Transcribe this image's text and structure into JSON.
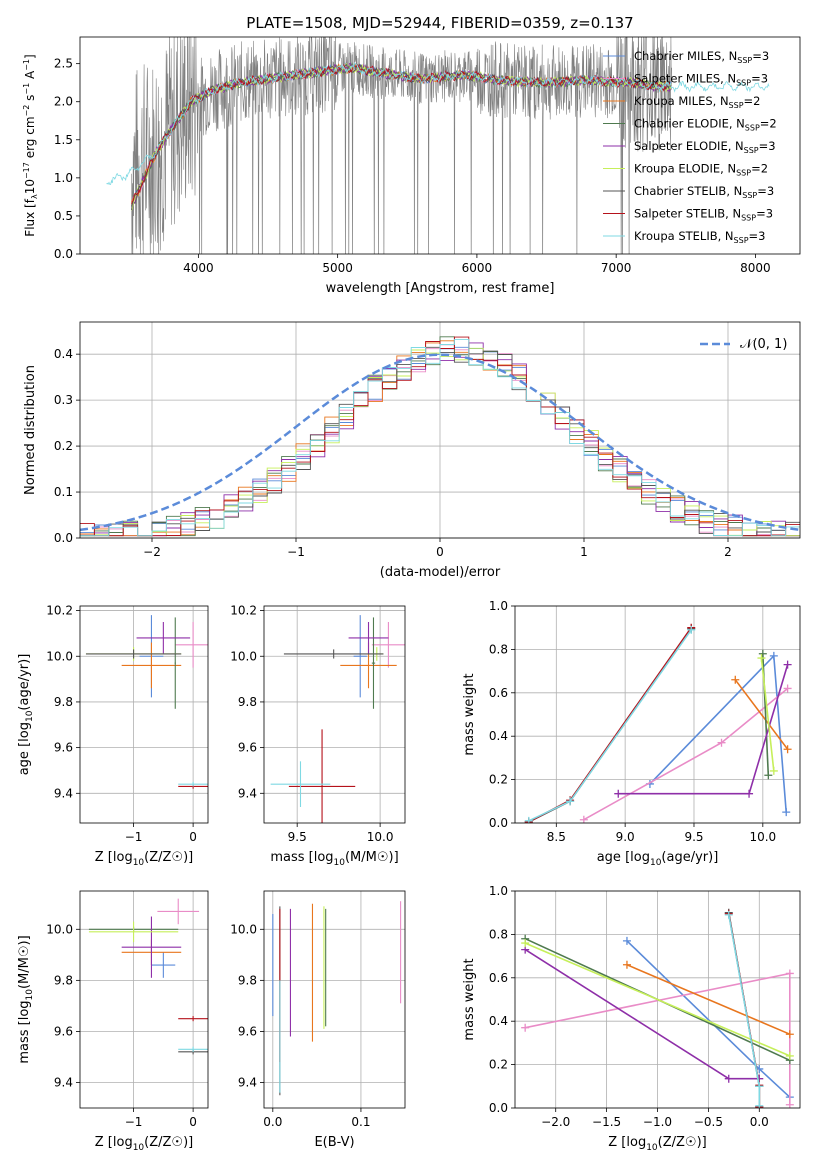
{
  "figure": {
    "title": "PLATE=1508, MJD=52944, FIBERID=0359, z=0.137"
  },
  "series": [
    {
      "name": "Chabrier MILES",
      "color": "#5b8bd9",
      "label": "Chabrier MILES, N",
      "nssp": "3"
    },
    {
      "name": "Salpeter MILES",
      "color": "#e98cc7",
      "label": "Salpeter MILES, N",
      "nssp": "3"
    },
    {
      "name": "Kroupa MILES",
      "color": "#e8761e",
      "label": "Kroupa MILES, N",
      "nssp": "2"
    },
    {
      "name": "Chabrier ELODIE",
      "color": "#4f7a4f",
      "label": "Chabrier ELODIE, N",
      "nssp": "2"
    },
    {
      "name": "Salpeter ELODIE",
      "color": "#8e2fa8",
      "label": "Salpeter ELODIE, N",
      "nssp": "3"
    },
    {
      "name": "Kroupa ELODIE",
      "color": "#c6ef5a",
      "label": "Kroupa ELODIE, N",
      "nssp": "2"
    },
    {
      "name": "Chabrier STELIB",
      "color": "#555555",
      "label": "Chabrier STELIB, N",
      "nssp": "3"
    },
    {
      "name": "Salpeter STELIB",
      "color": "#b5121b",
      "label": "Salpeter STELIB, N",
      "nssp": "3"
    },
    {
      "name": "Kroupa STELIB",
      "color": "#7fd9e3",
      "label": "Kroupa STELIB, N",
      "nssp": "3"
    }
  ],
  "chart_data": [
    {
      "id": "spectrum",
      "type": "line",
      "xlabel": "wavelength [Angstrom, rest frame]",
      "ylabel": "Flux [f",
      "xlim": [
        3150,
        8320
      ],
      "ylim": [
        0,
        2.85
      ],
      "xticks": [
        "4000",
        "5000",
        "6000",
        "7000",
        "8000"
      ],
      "xtick_values": [
        4000,
        5000,
        6000,
        7000,
        8000
      ],
      "yticks": [
        "0.0",
        "0.5",
        "1.0",
        "1.5",
        "2.0",
        "2.5"
      ],
      "ytick_values": [
        0,
        0.5,
        1.0,
        1.5,
        2.0,
        2.5
      ],
      "data_grey": {
        "name": "data",
        "color": "#808080"
      },
      "continuum": {
        "x": [
          3340,
          3500,
          3700,
          3850,
          3950,
          4100,
          4300,
          4500,
          4700,
          4900,
          5100,
          5300,
          5600,
          5900,
          6200,
          6500,
          6800,
          7100,
          7300
        ],
        "y": [
          0.95,
          1.05,
          1.35,
          1.75,
          2.0,
          2.15,
          2.25,
          2.3,
          2.35,
          2.4,
          2.45,
          2.38,
          2.3,
          2.35,
          2.28,
          2.25,
          2.28,
          2.25,
          2.2
        ]
      }
    },
    {
      "id": "residuals",
      "type": "histogram",
      "xlabel": "(data-model)/error",
      "ylabel": "Normed distribution",
      "xlim": [
        -2.5,
        2.5
      ],
      "ylim": [
        0,
        0.47
      ],
      "xticks": [
        "−2",
        "−1",
        "0",
        "1",
        "2"
      ],
      "xtick_values": [
        -2,
        -1,
        0,
        1,
        2
      ],
      "yticks": [
        "0.0",
        "0.1",
        "0.2",
        "0.3",
        "0.4"
      ],
      "ytick_values": [
        0,
        0.1,
        0.2,
        0.3,
        0.4
      ],
      "normal_label": "𝒩(0, 1)",
      "normal_color": "#5b8bd9",
      "bin_width": 0.1,
      "bin_start": -2.5
    },
    {
      "id": "age-vs-Z",
      "type": "scatter",
      "xlabel": "Z [log",
      "ylabel": "age  [log",
      "xlim": [
        -1.9,
        0.25
      ],
      "ylim": [
        9.27,
        10.22
      ],
      "xticks": [
        "−1",
        "0"
      ],
      "xtick_values": [
        -1,
        0
      ],
      "yticks": [
        "9.4",
        "9.6",
        "9.8",
        "10.0",
        "10.2"
      ],
      "ytick_values": [
        9.4,
        9.6,
        9.8,
        10.0,
        10.2
      ],
      "points": [
        {
          "series": 0,
          "x": -0.7,
          "y": 10.0,
          "xerr": 0.2,
          "yerr": 0.18
        },
        {
          "series": 1,
          "x": 0.0,
          "y": 10.05,
          "xerr": 0.3,
          "yerr": 0.1
        },
        {
          "series": 2,
          "x": -0.7,
          "y": 9.96,
          "xerr": 0.5,
          "yerr": 0.1
        },
        {
          "series": 3,
          "x": -0.3,
          "y": 9.97,
          "xerr": 0.01,
          "yerr": 0.2
        },
        {
          "series": 4,
          "x": -0.5,
          "y": 10.08,
          "xerr": 0.45,
          "yerr": 0.07
        },
        {
          "series": 5,
          "x": -1.0,
          "y": 10.01,
          "xerr": 0.8,
          "yerr": 0.03
        },
        {
          "series": 6,
          "x": -1.0,
          "y": 10.01,
          "xerr": 0.8,
          "yerr": 0.02
        },
        {
          "series": 7,
          "x": 0.0,
          "y": 9.43,
          "xerr": 0.25,
          "yerr": 0.01
        },
        {
          "series": 8,
          "x": 0.0,
          "y": 9.44,
          "xerr": 0.25,
          "yerr": 0.01
        }
      ]
    },
    {
      "id": "age-vs-mass",
      "type": "scatter",
      "xlabel": "mass [log",
      "ylabel": "",
      "xlim": [
        9.3,
        10.15
      ],
      "ylim": [
        9.27,
        10.22
      ],
      "xticks": [
        "9.5",
        "10.0"
      ],
      "xtick_values": [
        9.5,
        10.0
      ],
      "yticks": [
        "9.4",
        "9.6",
        "9.8",
        "10.0",
        "10.2"
      ],
      "ytick_values": [
        9.4,
        9.6,
        9.8,
        10.0,
        10.2
      ],
      "points": [
        {
          "series": 0,
          "x": 9.88,
          "y": 10.0,
          "xerr": 0.04,
          "yerr": 0.18
        },
        {
          "series": 1,
          "x": 10.05,
          "y": 10.05,
          "xerr": 0.1,
          "yerr": 0.1
        },
        {
          "series": 2,
          "x": 9.93,
          "y": 9.96,
          "xerr": 0.17,
          "yerr": 0.1
        },
        {
          "series": 3,
          "x": 9.96,
          "y": 9.97,
          "xerr": 0.01,
          "yerr": 0.2
        },
        {
          "series": 4,
          "x": 9.93,
          "y": 10.08,
          "xerr": 0.12,
          "yerr": 0.07
        },
        {
          "series": 5,
          "x": 9.98,
          "y": 10.01,
          "xerr": 0.04,
          "yerr": 0.03
        },
        {
          "series": 6,
          "x": 9.72,
          "y": 10.01,
          "xerr": 0.3,
          "yerr": 0.02
        },
        {
          "series": 7,
          "x": 9.65,
          "y": 9.43,
          "xerr": 0.2,
          "yerr": 0.25
        },
        {
          "series": 8,
          "x": 9.52,
          "y": 9.44,
          "xerr": 0.18,
          "yerr": 0.1
        }
      ]
    },
    {
      "id": "weight-vs-age",
      "type": "line",
      "xlabel": "age  [log",
      "ylabel": "mass weight",
      "xlim": [
        8.2,
        10.27
      ],
      "ylim": [
        0,
        1.0
      ],
      "xticks": [
        "8.5",
        "9.0",
        "9.5",
        "10.0"
      ],
      "xtick_values": [
        8.5,
        9.0,
        9.5,
        10.0
      ],
      "yticks": [
        "0.0",
        "0.2",
        "0.4",
        "0.6",
        "0.8",
        "1.0"
      ],
      "ytick_values": [
        0,
        0.2,
        0.4,
        0.6,
        0.8,
        1.0
      ],
      "lines": [
        {
          "series": 0,
          "x": [
            9.18,
            10.08,
            10.17
          ],
          "y": [
            0.18,
            0.77,
            0.05
          ]
        },
        {
          "series": 1,
          "x": [
            8.7,
            9.7,
            10.18
          ],
          "y": [
            0.015,
            0.37,
            0.62
          ]
        },
        {
          "series": 2,
          "x": [
            9.8,
            10.18
          ],
          "y": [
            0.66,
            0.34
          ]
        },
        {
          "series": 3,
          "x": [
            10.0,
            10.04
          ],
          "y": [
            0.78,
            0.22
          ]
        },
        {
          "series": 4,
          "x": [
            8.95,
            9.9,
            10.18
          ],
          "y": [
            0.135,
            0.135,
            0.73
          ]
        },
        {
          "series": 5,
          "x": [
            9.99,
            10.08
          ],
          "y": [
            0.76,
            0.24
          ]
        },
        {
          "series": 6,
          "x": [
            8.3,
            8.6,
            9.48
          ],
          "y": [
            0.005,
            0.1,
            0.895
          ]
        },
        {
          "series": 7,
          "x": [
            8.3,
            8.6,
            9.48
          ],
          "y": [
            0.005,
            0.105,
            0.9
          ]
        },
        {
          "series": 8,
          "x": [
            8.3,
            8.6,
            9.48
          ],
          "y": [
            0.01,
            0.1,
            0.89
          ]
        }
      ]
    },
    {
      "id": "mass-vs-Z",
      "type": "scatter",
      "xlabel": "Z [log",
      "ylabel": "mass [log",
      "xlim": [
        -1.9,
        0.25
      ],
      "ylim": [
        9.3,
        10.15
      ],
      "xticks": [
        "−1",
        "0"
      ],
      "xtick_values": [
        -1,
        0
      ],
      "yticks": [
        "9.4",
        "9.6",
        "9.8",
        "10.0"
      ],
      "ytick_values": [
        9.4,
        9.6,
        9.8,
        10.0
      ],
      "points": [
        {
          "series": 0,
          "x": -0.5,
          "y": 9.86,
          "xerr": 0.2,
          "yerr": 0.05
        },
        {
          "series": 1,
          "x": -0.25,
          "y": 10.07,
          "xerr": 0.35,
          "yerr": 0.05
        },
        {
          "series": 2,
          "x": -0.7,
          "y": 9.91,
          "xerr": 0.5,
          "yerr": 0.05
        },
        {
          "series": 3,
          "x": -1.0,
          "y": 10.0,
          "xerr": 0.75,
          "yerr": 0.01
        },
        {
          "series": 4,
          "x": -0.7,
          "y": 9.93,
          "xerr": 0.5,
          "yerr": 0.12
        },
        {
          "series": 5,
          "x": -1.0,
          "y": 9.99,
          "xerr": 0.75,
          "yerr": 0.04
        },
        {
          "series": 6,
          "x": 0.0,
          "y": 9.52,
          "xerr": 0.25,
          "yerr": 0.01
        },
        {
          "series": 7,
          "x": 0.0,
          "y": 9.65,
          "xerr": 0.25,
          "yerr": 0.01
        },
        {
          "series": 8,
          "x": 0.0,
          "y": 9.53,
          "xerr": 0.25,
          "yerr": 0.01
        }
      ]
    },
    {
      "id": "mass-vs-EBV",
      "type": "scatter",
      "xlabel": "E(B-V)",
      "ylabel": "",
      "xlim": [
        -0.01,
        0.15
      ],
      "ylim": [
        9.3,
        10.15
      ],
      "xticks": [
        "0.0",
        "0.1"
      ],
      "xtick_values": [
        0,
        0.1
      ],
      "yticks": [
        "9.4",
        "9.6",
        "9.8",
        "10.0"
      ],
      "ytick_values": [
        9.4,
        9.6,
        9.8,
        10.0
      ],
      "points": [
        {
          "series": 0,
          "x": 0.0,
          "y": 9.86,
          "yerr": 0.2
        },
        {
          "series": 1,
          "x": 0.145,
          "y": 9.91,
          "yerr": 0.2
        },
        {
          "series": 2,
          "x": 0.045,
          "y": 9.83,
          "yerr": 0.27
        },
        {
          "series": 3,
          "x": 0.06,
          "y": 9.85,
          "yerr": 0.23
        },
        {
          "series": 4,
          "x": 0.02,
          "y": 9.83,
          "yerr": 0.25
        },
        {
          "series": 5,
          "x": 0.058,
          "y": 9.85,
          "yerr": 0.24
        },
        {
          "series": 6,
          "x": 0.008,
          "y": 9.72,
          "yerr": 0.37
        },
        {
          "series": 7,
          "x": 0.008,
          "y": 9.78,
          "yerr": 0.3
        },
        {
          "series": 8,
          "x": 0.008,
          "y": 9.58,
          "yerr": 0.22
        }
      ]
    },
    {
      "id": "weight-vs-Z",
      "type": "line",
      "xlabel": "Z [log",
      "ylabel": "mass weight",
      "xlim": [
        -2.4,
        0.4
      ],
      "ylim": [
        0,
        1.0
      ],
      "xticks": [
        "−2.0",
        "−1.5",
        "−1.0",
        "−0.5",
        "0.0"
      ],
      "xtick_values": [
        -2.0,
        -1.5,
        -1.0,
        -0.5,
        0.0
      ],
      "yticks": [
        "0.0",
        "0.2",
        "0.4",
        "0.6",
        "0.8",
        "1.0"
      ],
      "ytick_values": [
        0,
        0.2,
        0.4,
        0.6,
        0.8,
        1.0
      ],
      "lines": [
        {
          "series": 0,
          "x": [
            -1.3,
            0.0,
            0.3
          ],
          "y": [
            0.77,
            0.18,
            0.05
          ]
        },
        {
          "series": 1,
          "x": [
            -2.3,
            0.3,
            0.3
          ],
          "y": [
            0.37,
            0.62,
            0.015
          ]
        },
        {
          "series": 2,
          "x": [
            -1.3,
            0.3
          ],
          "y": [
            0.66,
            0.34
          ]
        },
        {
          "series": 3,
          "x": [
            -2.3,
            0.3
          ],
          "y": [
            0.78,
            0.22
          ]
        },
        {
          "series": 4,
          "x": [
            -2.3,
            -0.3,
            0.0
          ],
          "y": [
            0.73,
            0.135,
            0.135
          ]
        },
        {
          "series": 5,
          "x": [
            -2.3,
            0.3
          ],
          "y": [
            0.76,
            0.24
          ]
        },
        {
          "series": 6,
          "x": [
            -0.3,
            0.0,
            0.0
          ],
          "y": [
            0.9,
            0.1,
            0.005
          ]
        },
        {
          "series": 7,
          "x": [
            -0.3,
            0.0,
            0.0
          ],
          "y": [
            0.895,
            0.105,
            0.005
          ]
        },
        {
          "series": 8,
          "x": [
            -0.3,
            0.0,
            0.0
          ],
          "y": [
            0.89,
            0.1,
            0.01
          ]
        }
      ]
    }
  ]
}
